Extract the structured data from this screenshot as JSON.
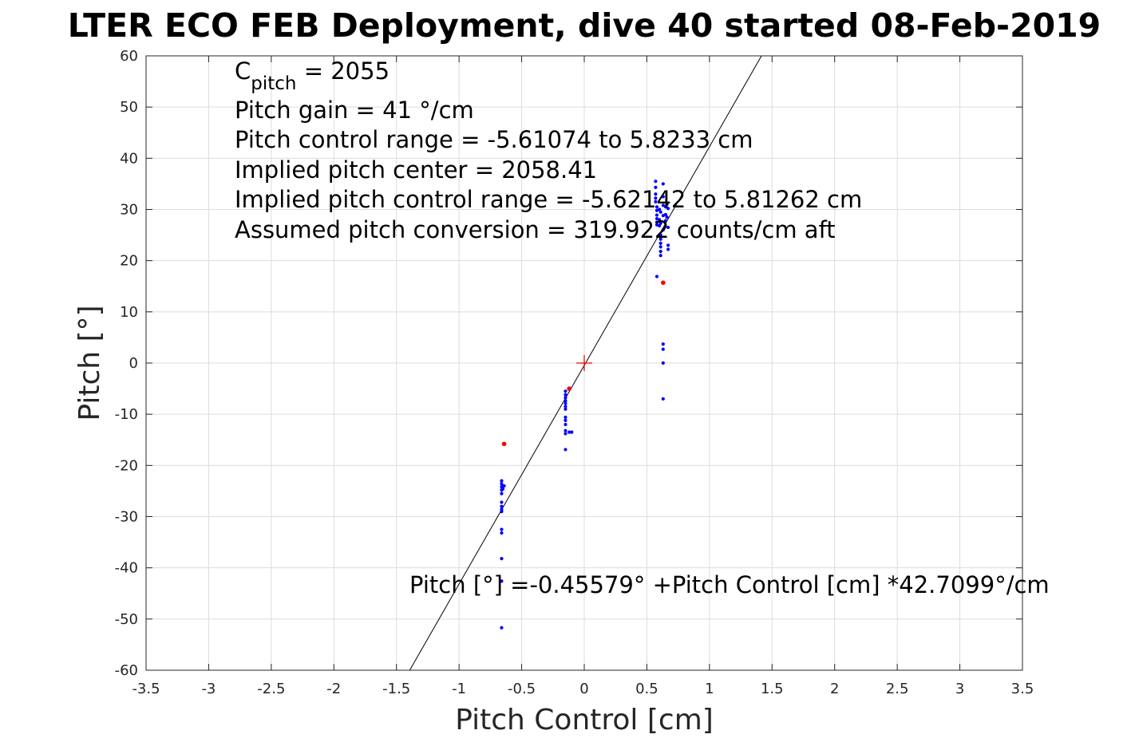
{
  "chart_data": {
    "type": "scatter",
    "title": "LTER ECO FEB Deployment, dive 40 started 08-Feb-2019",
    "xlabel": "Pitch Control [cm]",
    "ylabel": "Pitch [°]",
    "xlim": [
      -3.5,
      3.5
    ],
    "ylim": [
      -60,
      60
    ],
    "xticks": [
      -3.5,
      -3,
      -2.5,
      -2,
      -1.5,
      -1,
      -0.5,
      0,
      0.5,
      1,
      1.5,
      2,
      2.5,
      3,
      3.5
    ],
    "yticks": [
      -60,
      -50,
      -40,
      -30,
      -20,
      -10,
      0,
      10,
      20,
      30,
      40,
      50,
      60
    ],
    "xtick_labels": [
      "-3.5",
      "-3",
      "-2.5",
      "-2",
      "-1.5",
      "-1",
      "-0.5",
      "0",
      "0.5",
      "1",
      "1.5",
      "2",
      "2.5",
      "3",
      "3.5"
    ],
    "ytick_labels": [
      "-60",
      "-50",
      "-40",
      "-30",
      "-20",
      "-10",
      "0",
      "10",
      "20",
      "30",
      "40",
      "50",
      "60"
    ],
    "grid": true,
    "series": [
      {
        "color": "#0000ff",
        "marker": "dot",
        "points": [
          [
            -0.66,
            -23.0
          ],
          [
            -0.66,
            -23.6
          ],
          [
            -0.66,
            -24.2
          ],
          [
            -0.66,
            -24.8
          ],
          [
            -0.66,
            -25.5
          ],
          [
            -0.66,
            -27.2
          ],
          [
            -0.66,
            -28.0
          ],
          [
            -0.66,
            -28.6
          ],
          [
            -0.66,
            -29.0
          ],
          [
            -0.66,
            -32.5
          ],
          [
            -0.66,
            -33.2
          ],
          [
            -0.66,
            -38.2
          ],
          [
            -0.66,
            -42.6
          ],
          [
            -0.66,
            -51.7
          ],
          [
            -0.64,
            -24.0
          ],
          [
            -0.65,
            -24.6
          ],
          [
            -0.15,
            -5.5
          ],
          [
            -0.15,
            -6.2
          ],
          [
            -0.15,
            -6.8
          ],
          [
            -0.15,
            -7.4
          ],
          [
            -0.15,
            -7.9
          ],
          [
            -0.15,
            -8.5
          ],
          [
            -0.15,
            -9.0
          ],
          [
            -0.15,
            -10.6
          ],
          [
            -0.15,
            -11.2
          ],
          [
            -0.15,
            -12.0
          ],
          [
            -0.15,
            -13.2
          ],
          [
            -0.15,
            -13.8
          ],
          [
            -0.15,
            -16.9
          ],
          [
            -0.12,
            -13.5
          ],
          [
            -0.1,
            -13.5
          ],
          [
            0.57,
            35.5
          ],
          [
            0.57,
            34.3
          ],
          [
            0.57,
            33.0
          ],
          [
            0.57,
            32.2
          ],
          [
            0.57,
            31.5
          ],
          [
            0.58,
            30.5
          ],
          [
            0.58,
            29.8
          ],
          [
            0.58,
            28.9
          ],
          [
            0.58,
            28.2
          ],
          [
            0.58,
            27.5
          ],
          [
            0.58,
            27.0
          ],
          [
            0.58,
            16.9
          ],
          [
            0.6,
            30.0
          ],
          [
            0.6,
            28.0
          ],
          [
            0.6,
            26.8
          ],
          [
            0.61,
            29.5
          ],
          [
            0.61,
            27.3
          ],
          [
            0.61,
            25.0
          ],
          [
            0.61,
            24.2
          ],
          [
            0.61,
            23.4
          ],
          [
            0.61,
            22.7
          ],
          [
            0.61,
            21.8
          ],
          [
            0.61,
            21.0
          ],
          [
            0.63,
            35.0
          ],
          [
            0.63,
            32.5
          ],
          [
            0.63,
            30.8
          ],
          [
            0.63,
            28.8
          ],
          [
            0.63,
            26.0
          ],
          [
            0.63,
            3.7
          ],
          [
            0.63,
            2.7
          ],
          [
            0.63,
            0.0
          ],
          [
            0.63,
            -7.0
          ],
          [
            0.65,
            30.5
          ],
          [
            0.65,
            29.0
          ],
          [
            0.65,
            27.8
          ],
          [
            0.66,
            31.0
          ],
          [
            0.66,
            28.5
          ],
          [
            0.67,
            30.2
          ],
          [
            0.67,
            26.5
          ],
          [
            0.67,
            23.0
          ],
          [
            0.67,
            22.2
          ]
        ]
      },
      {
        "color": "#ff0000",
        "marker": "dot",
        "points": [
          [
            -0.64,
            -15.8
          ],
          [
            -0.12,
            -5.0
          ],
          [
            0.63,
            15.7
          ]
        ]
      }
    ],
    "center_marker": {
      "x": 0,
      "y": 0,
      "color": "#ff0000",
      "marker": "plus"
    },
    "fit_line": {
      "intercept": -0.45579,
      "slope": 42.7099,
      "color": "#000000"
    },
    "annotations": {
      "cpitch_base": "C",
      "cpitch_sub": "pitch",
      "cpitch_value": " = 2055",
      "lines": [
        "Pitch gain = 41 °/cm",
        "Pitch control range = -5.61074 to 5.8233 cm",
        "Implied pitch center = 2058.41",
        "Implied pitch control range = -5.62142 to 5.81262 cm",
        "Assumed pitch conversion = 319.922 counts/cm aft"
      ],
      "fit_equation": "Pitch [°] =-0.45579° +Pitch Control [cm] *42.7099°/cm"
    }
  }
}
